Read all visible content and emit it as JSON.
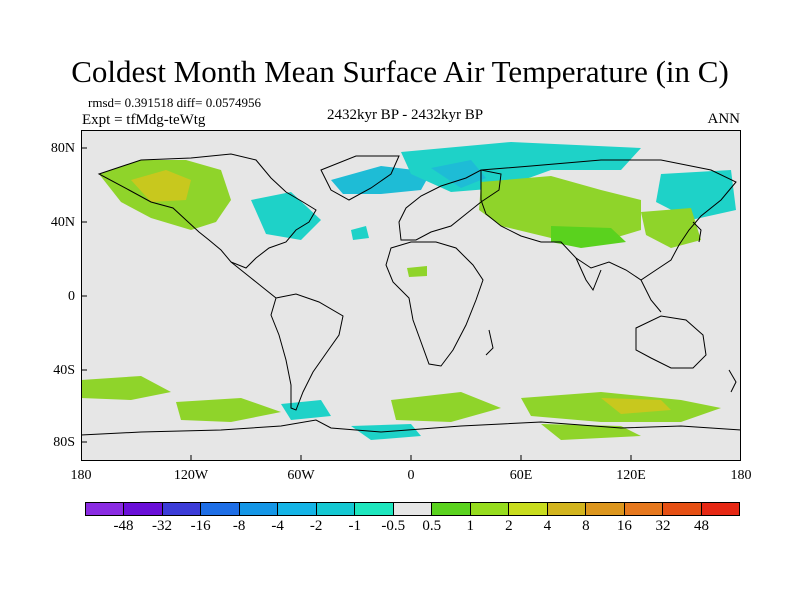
{
  "title": "Coldest Month Mean Surface Air Temperature (in C)",
  "stats": "rmsd= 0.391518 diff= 0.0574956",
  "experiment": "Expt = tfMdg-teWtg",
  "period": "2432kyr BP - 2432kyr BP",
  "season": "ANN",
  "map": {
    "projection": "cylindrical equidistant, global",
    "lat_ticks": [
      "80N",
      "40N",
      "0",
      "40S",
      "80S"
    ],
    "lon_ticks": [
      "180",
      "120W",
      "60W",
      "0",
      "60E",
      "120E",
      "180"
    ],
    "background_color": "#e6e6e6",
    "coast_color": "#000000"
  },
  "colorbar": {
    "colors": [
      "#8a2be2",
      "#6a0fd8",
      "#3c3cd8",
      "#1e6ee6",
      "#1496e6",
      "#14b4e6",
      "#14c8d2",
      "#1ee6be",
      "#e6e6e6",
      "#5ad21e",
      "#96dc1e",
      "#c8dc1e",
      "#d2b41e",
      "#dc961e",
      "#e6781e",
      "#e65014",
      "#e62814"
    ],
    "labels": [
      "-48",
      "-32",
      "-16",
      "-8",
      "-4",
      "-2",
      "-1",
      "-0.5",
      "0.5",
      "1",
      "2",
      "4",
      "8",
      "16",
      "32",
      "48"
    ]
  }
}
